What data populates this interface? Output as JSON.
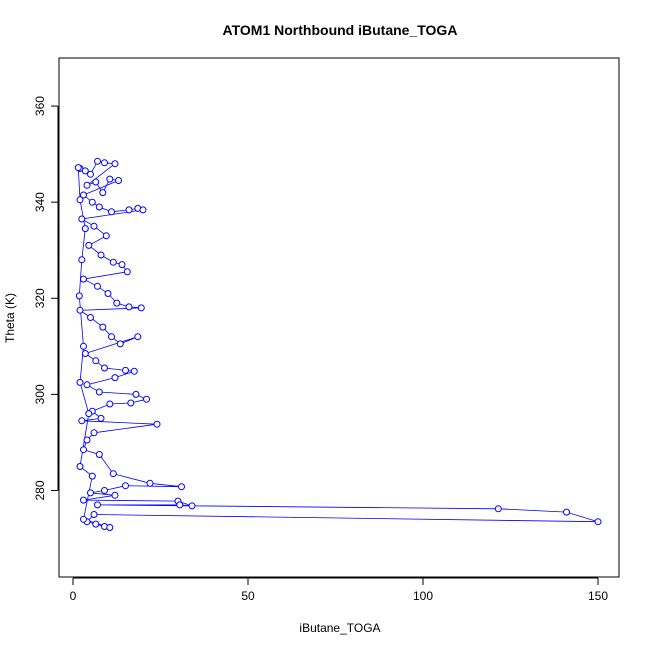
{
  "chart_data": {
    "type": "scatter",
    "title": "ATOM1 Northbound iButane_TOGA",
    "xlabel": "iButane_TOGA",
    "ylabel": "Theta (K)",
    "xlim": [
      -4,
      156
    ],
    "ylim": [
      262,
      370
    ],
    "xticks": [
      0,
      50,
      100,
      150
    ],
    "yticks": [
      280,
      300,
      320,
      340,
      360
    ],
    "grid": false,
    "legend": "none",
    "point_style": "open-circle-connected",
    "color": "#0000ff",
    "series": [
      {
        "points": [
          [
            2.0,
            347.0
          ],
          [
            3.5,
            346.5
          ],
          [
            5.0,
            345.8
          ],
          [
            7.0,
            348.5
          ],
          [
            9.0,
            348.2
          ],
          [
            12.0,
            348.0
          ],
          [
            4.0,
            343.5
          ],
          [
            6.5,
            344.2
          ],
          [
            8.5,
            342.0
          ],
          [
            10.5,
            344.8
          ],
          [
            13.0,
            344.5
          ],
          [
            3.0,
            341.5
          ],
          [
            5.5,
            340.0
          ],
          [
            7.5,
            339.0
          ],
          [
            11.0,
            338.0
          ],
          [
            16.0,
            338.4
          ],
          [
            18.5,
            338.7
          ],
          [
            20.0,
            338.4
          ],
          [
            2.5,
            336.5
          ],
          [
            6.0,
            335.0
          ],
          [
            9.5,
            333.0
          ],
          [
            4.5,
            331.0
          ],
          [
            8.0,
            329.0
          ],
          [
            11.5,
            327.5
          ],
          [
            14.0,
            327.0
          ],
          [
            15.5,
            325.5
          ],
          [
            3.0,
            324.0
          ],
          [
            7.0,
            322.5
          ],
          [
            10.0,
            321.0
          ],
          [
            12.5,
            319.0
          ],
          [
            16.0,
            318.2
          ],
          [
            19.5,
            318.0
          ],
          [
            2.0,
            317.5
          ],
          [
            5.0,
            316.0
          ],
          [
            8.5,
            314.0
          ],
          [
            11.0,
            312.0
          ],
          [
            13.5,
            310.5
          ],
          [
            18.5,
            312.0
          ],
          [
            3.5,
            308.5
          ],
          [
            6.5,
            307.0
          ],
          [
            9.0,
            305.5
          ],
          [
            15.0,
            305.0
          ],
          [
            17.5,
            304.8
          ],
          [
            12.0,
            303.5
          ],
          [
            4.0,
            302.0
          ],
          [
            7.5,
            300.5
          ],
          [
            18.0,
            300.0
          ],
          [
            21.0,
            299.0
          ],
          [
            16.5,
            298.2
          ],
          [
            10.5,
            298.0
          ],
          [
            5.5,
            296.5
          ],
          [
            8.0,
            295.0
          ],
          [
            2.5,
            294.5
          ],
          [
            24.0,
            293.8
          ],
          [
            6.0,
            292.0
          ],
          [
            4.0,
            290.5
          ],
          [
            3.0,
            288.5
          ],
          [
            7.5,
            287.5
          ],
          [
            11.5,
            283.5
          ],
          [
            22.0,
            281.5
          ],
          [
            31.0,
            280.8
          ],
          [
            15.0,
            281.0
          ],
          [
            9.0,
            280.0
          ],
          [
            5.0,
            279.5
          ],
          [
            12.0,
            279.0
          ],
          [
            3.0,
            278.0
          ],
          [
            30.0,
            277.8
          ],
          [
            34.0,
            276.8
          ],
          [
            30.5,
            277.0
          ],
          [
            7.0,
            277.0
          ],
          [
            121.5,
            276.2
          ],
          [
            141.0,
            275.5
          ],
          [
            150.0,
            273.5
          ],
          [
            6.0,
            275.0
          ],
          [
            4.0,
            273.5
          ],
          [
            9.0,
            272.5
          ],
          [
            6.5,
            273.0
          ],
          [
            10.5,
            272.3
          ],
          [
            3.0,
            274.0
          ],
          [
            5.5,
            283.0
          ],
          [
            2.0,
            285.0
          ],
          [
            4.5,
            296.0
          ],
          [
            2.0,
            302.5
          ],
          [
            3.0,
            310.0
          ],
          [
            1.8,
            320.5
          ],
          [
            2.5,
            328.0
          ],
          [
            3.5,
            334.5
          ],
          [
            2.0,
            340.5
          ],
          [
            1.5,
            347.2
          ]
        ]
      }
    ]
  }
}
